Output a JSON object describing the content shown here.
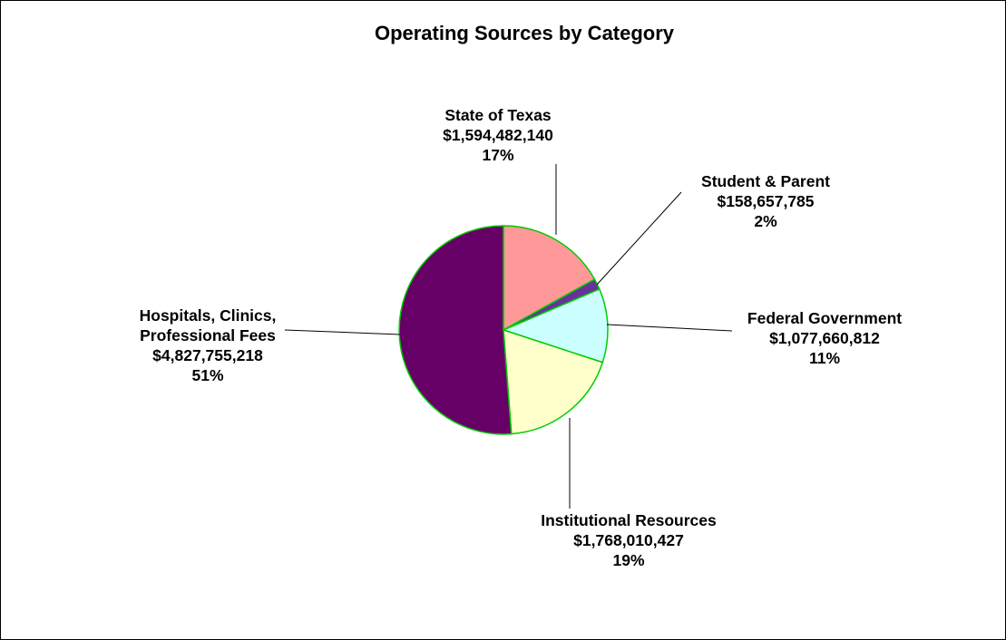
{
  "chart_data": {
    "type": "pie",
    "title": "Operating Sources by Category",
    "slices": [
      {
        "name": "State of Texas",
        "value_text": "$1,594,482,140",
        "percent_text": "17%",
        "value": 1594482140,
        "color": "#FF9999"
      },
      {
        "name": "Student & Parent",
        "value_text": "$158,657,785",
        "percent_text": "2%",
        "value": 158657785,
        "color": "#663399"
      },
      {
        "name": "Federal Government",
        "value_text": "$1,077,660,812",
        "percent_text": "11%",
        "value": 1077660812,
        "color": "#CCFFFF"
      },
      {
        "name": "Institutional Resources",
        "value_text": "$1,768,010,427",
        "percent_text": "19%",
        "value": 1768010427,
        "color": "#FFFFCC"
      },
      {
        "name": "Hospitals, Clinics, Professional Fees",
        "name_lines": [
          "Hospitals, Clinics,",
          "Professional Fees"
        ],
        "value_text": "$4,827,755,218",
        "percent_text": "51%",
        "value": 4827755218,
        "color": "#660066"
      }
    ],
    "slice_border_color": "#00CC00",
    "leader_line_color": "#000000",
    "start_angle": "12 o'clock",
    "direction": "clockwise",
    "legend": "none"
  }
}
